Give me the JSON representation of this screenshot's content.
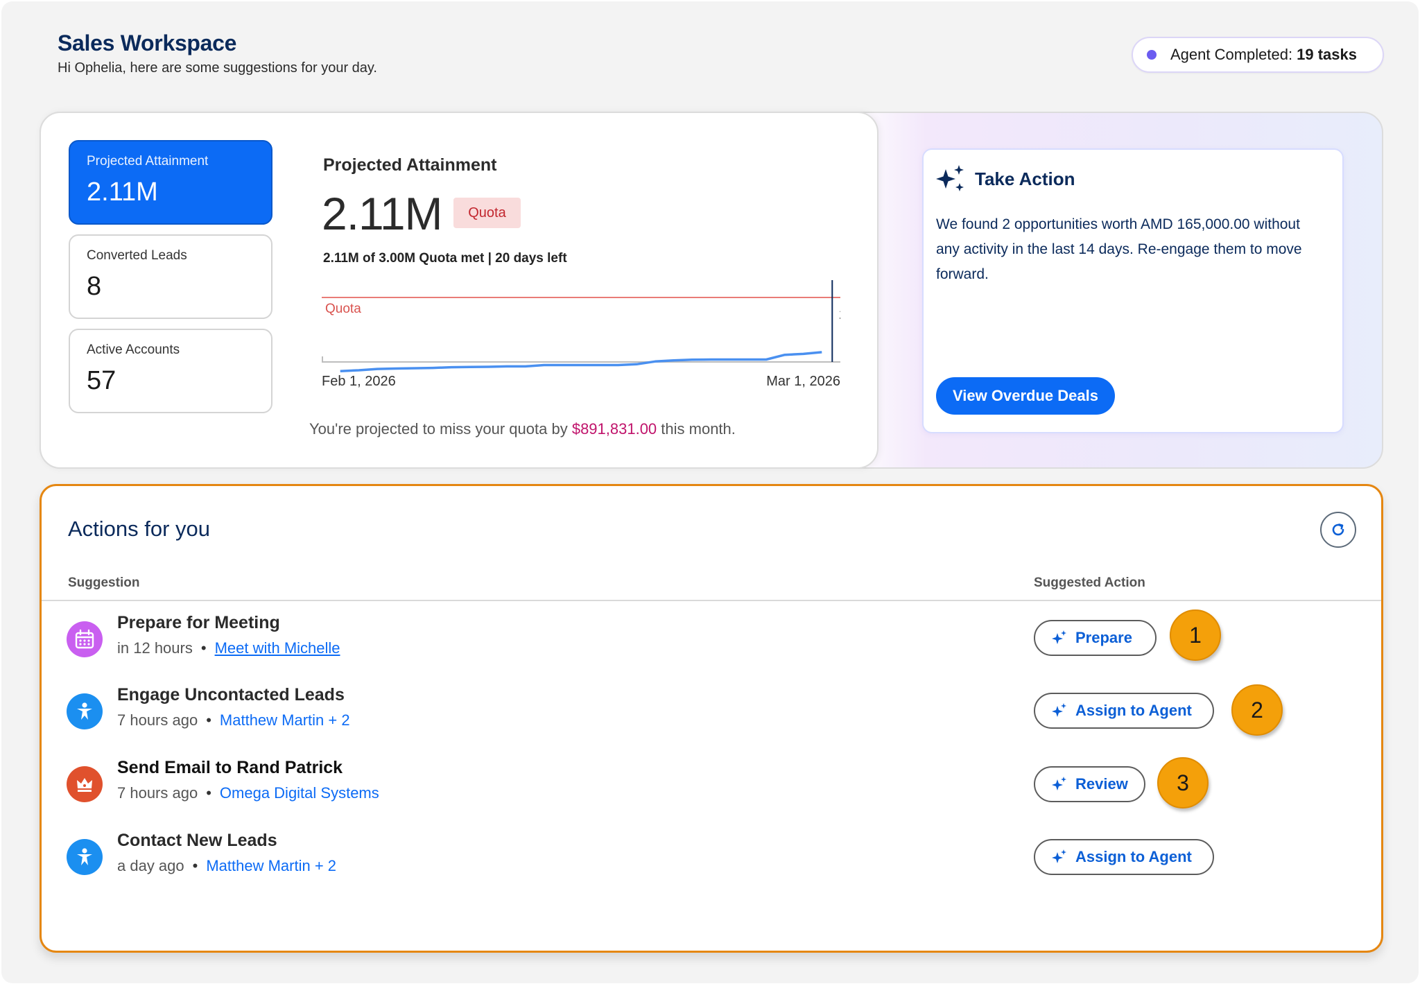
{
  "header": {
    "title": "Sales Workspace",
    "subtitle": "Hi Ophelia, here are some suggestions for your day."
  },
  "agent_status": {
    "label": "Agent Completed:",
    "count": "19 tasks",
    "dot_color": "#6b5cf0"
  },
  "kpis": [
    {
      "label": "Projected Attainment",
      "value": "2.11M",
      "active": true
    },
    {
      "label": "Converted Leads",
      "value": "8",
      "active": false
    },
    {
      "label": "Active Accounts",
      "value": "57",
      "active": false
    }
  ],
  "attainment": {
    "title": "Projected Attainment",
    "value": "2.11M",
    "badge": "Quota",
    "summary": "2.11M of 3.00M Quota met | 20 days left",
    "miss_prefix": "You're projected to miss your quota by ",
    "miss_amount": "$891,831.00",
    "miss_suffix": " this month."
  },
  "chart_data": {
    "type": "line",
    "x_start": "Feb 1, 2026",
    "x_end": "Mar 1, 2026",
    "quota_label": "Quota",
    "current_label": "2.11M",
    "quota_value": 3.0,
    "ylim": [
      0,
      3.0
    ],
    "x": [
      1,
      2,
      3,
      4,
      6,
      7,
      8,
      9,
      10,
      11,
      12,
      13,
      16,
      17,
      18,
      19,
      20,
      21,
      22,
      23,
      24,
      25,
      26,
      27
    ],
    "y": [
      0.38,
      0.42,
      0.48,
      0.5,
      0.53,
      0.56,
      0.57,
      0.58,
      0.6,
      0.6,
      0.66,
      0.66,
      0.66,
      0.7,
      0.83,
      0.88,
      0.91,
      0.92,
      0.92,
      0.92,
      0.92,
      1.14,
      1.18,
      1.26
    ],
    "series": [
      {
        "values_ref": "y",
        "color": "#4a90f0"
      }
    ],
    "quota_color": "#e97c77",
    "grid": false
  },
  "take_action": {
    "title": "Take Action",
    "body": "We found 2 opportunities worth AMD 165,000.00 without any activity in the last 14 days. Re-engage them to move forward.",
    "button": "View Overdue Deals"
  },
  "actions": {
    "title": "Actions for you",
    "col_suggestion": "Suggestion",
    "col_action": "Suggested Action",
    "rows": [
      {
        "title": "Prepare for Meeting",
        "time": "in 12 hours",
        "link": "Meet with Michelle",
        "action": "Prepare",
        "badge": "1",
        "icon": "calendar-icon",
        "icon_color": "#c95ff0"
      },
      {
        "title": "Engage Uncontacted Leads",
        "time": "7 hours ago",
        "link": "Matthew Martin + 2",
        "action": "Assign to Agent",
        "badge": "2",
        "icon": "person-icon",
        "icon_color": "#1b8ff0"
      },
      {
        "title": "Send Email to Rand Patrick",
        "time": "7 hours ago",
        "link": "Omega Digital Systems",
        "action": "Review",
        "badge": "3",
        "icon": "crown-icon",
        "icon_color": "#e0512d"
      },
      {
        "title": "Contact New Leads",
        "time": "a day ago",
        "link": "Matthew Martin + 2",
        "action": "Assign to Agent",
        "badge": "",
        "icon": "person-icon",
        "icon_color": "#1b8ff0"
      }
    ]
  }
}
